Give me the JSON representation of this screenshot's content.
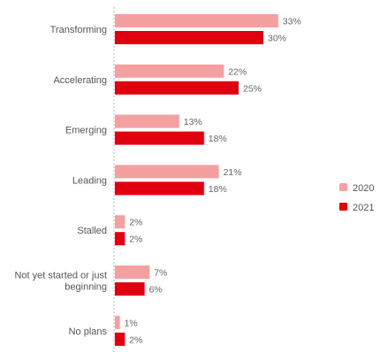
{
  "chart_data": {
    "type": "bar",
    "orientation": "horizontal",
    "categories": [
      "Transforming",
      "Accelerating",
      "Emerging",
      "Leading",
      "Stalled",
      "Not yet started or just beginning",
      "No plans"
    ],
    "category_lines": [
      [
        "Transforming"
      ],
      [
        "Accelerating"
      ],
      [
        "Emerging"
      ],
      [
        "Leading"
      ],
      [
        "Stalled"
      ],
      [
        "Not yet started or just",
        "beginning"
      ],
      [
        "No plans"
      ]
    ],
    "series": [
      {
        "name": "2020",
        "color": "#f4a0a0",
        "values": [
          33,
          22,
          13,
          21,
          2,
          7,
          1
        ],
        "labels": [
          "33%",
          "22%",
          "13%",
          "21%",
          "2%",
          "7%",
          "1%"
        ]
      },
      {
        "name": "2021",
        "color": "#e00010",
        "values": [
          30,
          25,
          18,
          18,
          2,
          6,
          2
        ],
        "labels": [
          "30%",
          "25%",
          "18%",
          "18%",
          "2%",
          "6%",
          "2%"
        ]
      }
    ],
    "xlim": [
      0,
      35
    ],
    "grid": false,
    "legend_position": "right",
    "title": "",
    "xlabel": "",
    "ylabel": ""
  }
}
